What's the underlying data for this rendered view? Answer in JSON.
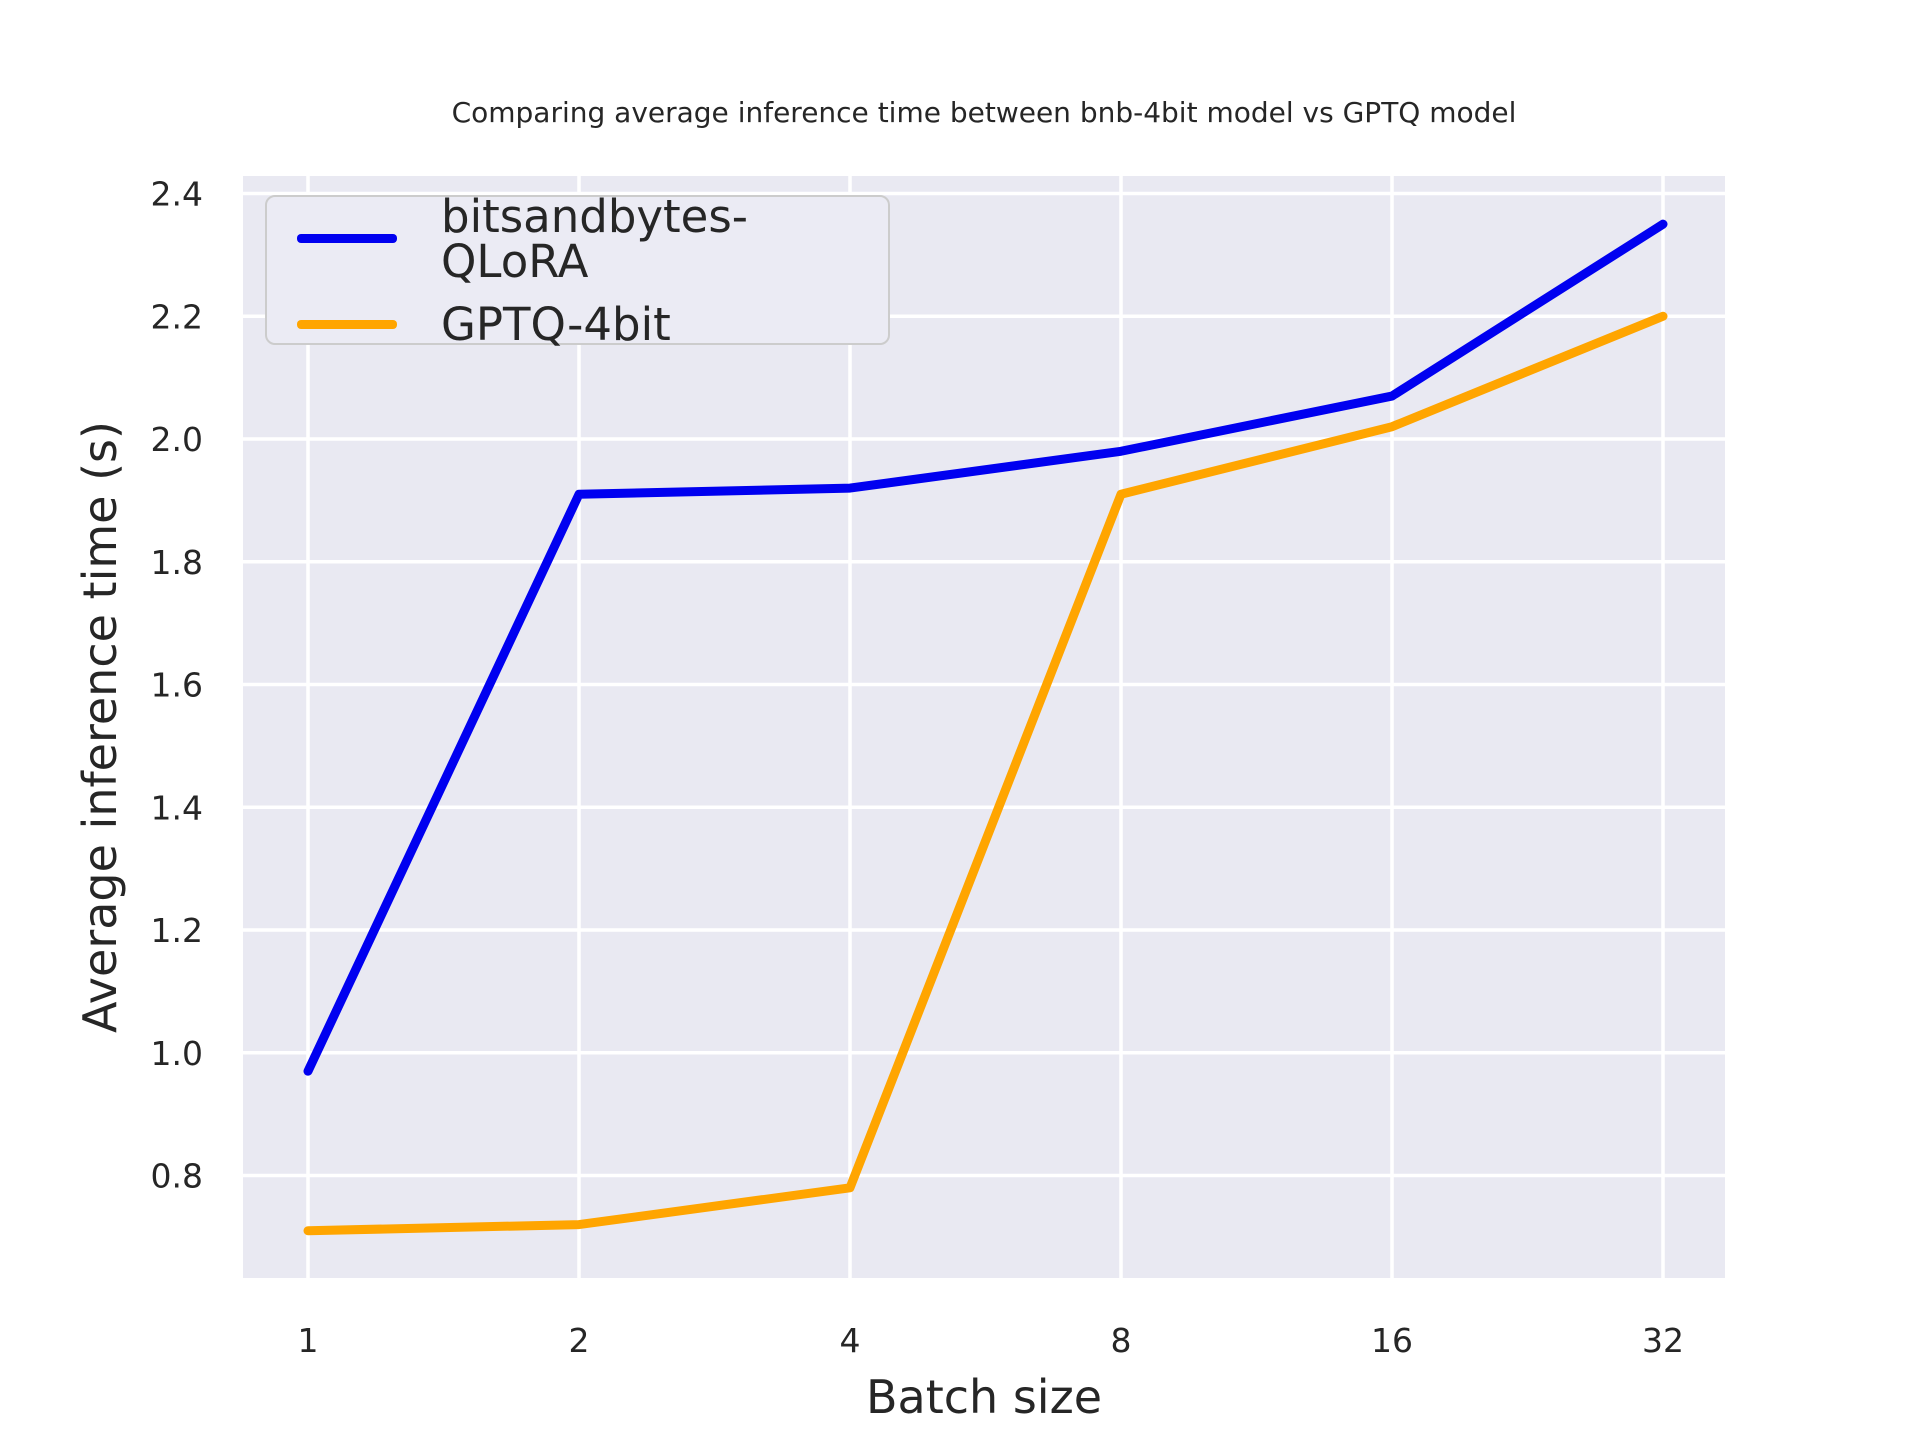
{
  "title": "Comparing average inference time between bnb-4bit model vs GPTQ model",
  "chart_data": {
    "type": "line",
    "title": "Comparing average inference time between bnb-4bit model vs GPTQ model",
    "xlabel": "Batch size",
    "ylabel": "Average inference time (s)",
    "x": [
      1,
      2,
      4,
      8,
      16,
      32
    ],
    "x_tick_labels": [
      "1",
      "2",
      "4",
      "8",
      "16",
      "32"
    ],
    "x_scale": "log2",
    "y_ticks": [
      0.8,
      1.0,
      1.2,
      1.4,
      1.6,
      1.8,
      2.0,
      2.2,
      2.4
    ],
    "ylim": [
      0.633,
      2.429
    ],
    "xlim_log2": [
      -0.24,
      5.23
    ],
    "grid": true,
    "legend_position": "upper-left",
    "series": [
      {
        "name": "bitsandbytes-QLoRA",
        "color": "#0000f0",
        "values": [
          0.97,
          1.91,
          1.92,
          1.98,
          2.07,
          2.35
        ]
      },
      {
        "name": "GPTQ-4bit",
        "color": "#ffa500",
        "values": [
          0.71,
          0.72,
          0.78,
          1.91,
          2.02,
          2.2
        ]
      }
    ]
  },
  "colors": {
    "figure_bg": "#ffffff",
    "plot_bg": "#e9e9f2",
    "grid": "#ffffff",
    "text": "#262626",
    "tick_text": "#262626",
    "legend_bg": "#ebebf4",
    "legend_border": "#cccccc"
  }
}
